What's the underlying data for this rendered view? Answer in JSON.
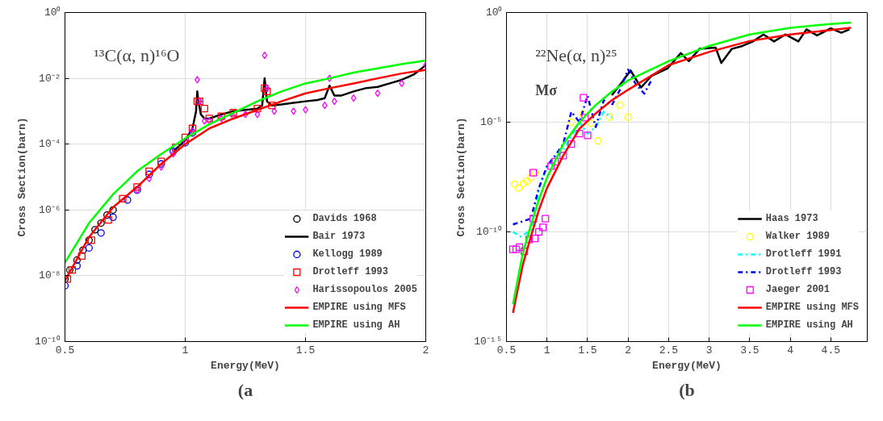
{
  "chart_data": [
    {
      "type": "scatter",
      "title": "¹³C(α, n)¹⁶O",
      "xlabel": "Energy(MeV)",
      "ylabel": "Cross Section(barn)",
      "annotations": [
        "(a"
      ],
      "log": "y",
      "grid": true,
      "legend": "bottom right",
      "xlim": [
        0.5,
        2
      ],
      "xticks": [
        0.5,
        1,
        1.5,
        2
      ],
      "ylim": [
        1e-10,
        1
      ],
      "yticks": [
        {
          "value": 1e-10,
          "label": "10⁻¹⁰"
        },
        {
          "value": 1e-08,
          "label": "10⁻⁸"
        },
        {
          "value": 1e-06,
          "label": "10⁻⁶"
        },
        {
          "value": 0.0001,
          "label": "10⁻⁴"
        },
        {
          "value": 0.01,
          "label": "10⁻²"
        },
        {
          "value": 1,
          "label": "10⁰"
        }
      ],
      "series": [
        {
          "name": "Davids 1968",
          "type": "scatter",
          "marker": "circle",
          "color": "#000000",
          "x": [
            0.5,
            0.52,
            0.55,
            0.575,
            0.6,
            0.625,
            0.65,
            0.675,
            0.7
          ],
          "values": [
            8e-09,
            1.5e-08,
            3e-08,
            6e-08,
            1.2e-07,
            2.5e-07,
            4e-07,
            7e-07,
            1e-06
          ]
        },
        {
          "name": "Bair 1973",
          "type": "line",
          "line_style": "solid",
          "color": "#000000",
          "x": [
            0.95,
            1.0,
            1.03,
            1.045,
            1.05,
            1.055,
            1.065,
            1.08,
            1.1,
            1.15,
            1.2,
            1.25,
            1.3,
            1.32,
            1.33,
            1.34,
            1.36,
            1.4,
            1.45,
            1.5,
            1.55,
            1.58,
            1.6,
            1.62,
            1.65,
            1.7,
            1.75,
            1.8,
            1.85,
            1.9,
            1.95,
            2.0
          ],
          "values": [
            6e-05,
            0.00013,
            0.0003,
            0.001,
            0.004,
            0.002,
            0.0008,
            0.0006,
            0.0006,
            0.0008,
            0.001,
            0.0011,
            0.0012,
            0.0015,
            0.01,
            0.002,
            0.0015,
            0.0016,
            0.0018,
            0.002,
            0.0022,
            0.0025,
            0.006,
            0.003,
            0.003,
            0.004,
            0.005,
            0.0055,
            0.007,
            0.009,
            0.013,
            0.025
          ]
        },
        {
          "name": "Kellogg 1989",
          "type": "scatter",
          "marker": "circle",
          "color": "#0000ff",
          "x": [
            0.5,
            0.55,
            0.6,
            0.65,
            0.7,
            0.76,
            0.8,
            0.85,
            0.9,
            0.95,
            1.0,
            1.03
          ],
          "values": [
            5e-09,
            2e-08,
            7e-08,
            2e-07,
            6e-07,
            2e-06,
            4e-06,
            1.2e-05,
            2.5e-05,
            6e-05,
            0.00011,
            0.00022
          ]
        },
        {
          "name": "Drotleff 1993",
          "type": "scatter",
          "marker": "square",
          "color": "#ff0000",
          "x": [
            0.51,
            0.53,
            0.57,
            0.61,
            0.68,
            0.74,
            0.8,
            0.85,
            0.9,
            0.96,
            1.0,
            1.03,
            1.05,
            1.06,
            1.08,
            1.1,
            1.15,
            1.2,
            1.3,
            1.33,
            1.34,
            1.36
          ],
          "values": [
            8e-09,
            1.5e-08,
            4e-08,
            1.2e-07,
            5e-07,
            2.2e-06,
            5e-06,
            1.5e-05,
            3e-05,
            8e-05,
            0.00016,
            0.0003,
            0.002,
            0.002,
            0.0012,
            0.0006,
            0.0007,
            0.0009,
            0.0012,
            0.005,
            0.004,
            0.0015
          ]
        },
        {
          "name": "Harissopoulos 2005",
          "type": "scatter",
          "marker": "diamond",
          "color": "#ff00ff",
          "x": [
            0.8,
            0.85,
            0.9,
            0.95,
            1.0,
            1.03,
            1.05,
            1.06,
            1.08,
            1.1,
            1.15,
            1.2,
            1.25,
            1.3,
            1.33,
            1.34,
            1.37,
            1.45,
            1.5,
            1.58,
            1.6,
            1.62,
            1.7,
            1.8,
            1.9,
            2.0
          ],
          "values": [
            4e-06,
            9e-06,
            2e-05,
            5e-05,
            0.00012,
            0.00025,
            0.009,
            0.002,
            0.0005,
            0.0005,
            0.0006,
            0.0007,
            0.0008,
            0.0008,
            0.05,
            0.005,
            0.001,
            0.001,
            0.0011,
            0.0015,
            0.01,
            0.002,
            0.0025,
            0.0035,
            0.007,
            0.025
          ]
        },
        {
          "name": "EMPIRE using MFS",
          "type": "line",
          "line_style": "solid",
          "color": "#ff0000",
          "x": [
            0.5,
            0.6,
            0.7,
            0.8,
            0.9,
            1.0,
            1.1,
            1.2,
            1.3,
            1.4,
            1.5,
            1.6,
            1.7,
            1.8,
            1.9,
            2.0
          ],
          "values": [
            7e-09,
            1.5e-07,
            1.2e-06,
            5e-06,
            2.5e-05,
            0.0001,
            0.0003,
            0.0006,
            0.0011,
            0.002,
            0.0035,
            0.005,
            0.007,
            0.01,
            0.014,
            0.018
          ]
        },
        {
          "name": "EMPIRE using AH",
          "type": "line",
          "line_style": "solid",
          "color": "#00ff00",
          "x": [
            0.5,
            0.6,
            0.7,
            0.8,
            0.9,
            1.0,
            1.1,
            1.2,
            1.3,
            1.4,
            1.5,
            1.6,
            1.7,
            1.8,
            1.9,
            2.0
          ],
          "values": [
            2.5e-08,
            4e-07,
            3e-06,
            1.5e-05,
            5e-05,
            0.00015,
            0.0004,
            0.0009,
            0.002,
            0.004,
            0.007,
            0.01,
            0.015,
            0.02,
            0.027,
            0.035
          ]
        }
      ]
    },
    {
      "type": "scatter",
      "title": "²²Ne(α, n)²⁵",
      "subtitle": "Mσ",
      "xlabel": "Energy(MeV)",
      "ylabel": "Cross Section(barn)",
      "annotations": [
        "(b"
      ],
      "log": "y",
      "grid": true,
      "legend": "bottom right",
      "xlim": [
        0.5,
        4.95
      ],
      "xticks": [
        0.5,
        1,
        1.5,
        2,
        2.5,
        3,
        3.5,
        4,
        4.5
      ],
      "ylim": [
        1e-15,
        1
      ],
      "yticks": [
        {
          "value": 1e-15,
          "label": "10⁻¹⁵"
        },
        {
          "value": 1e-10,
          "label": "10⁻¹⁰"
        },
        {
          "value": 1e-05,
          "label": "10⁻⁵"
        },
        {
          "value": 1,
          "label": "10⁰"
        }
      ],
      "series": [
        {
          "name": "Haas 1973",
          "type": "line",
          "line_style": "solid",
          "color": "#000000",
          "x": [
            1.8,
            1.93,
            2.03,
            2.16,
            2.29,
            2.49,
            2.65,
            2.75,
            2.88,
            3.08,
            3.15,
            3.28,
            3.41,
            3.54,
            3.67,
            3.8,
            3.94,
            4.1,
            4.2,
            4.33,
            4.5,
            4.63,
            4.73
          ],
          "values": [
            0.00017,
            0.0007,
            0.0023,
            0.00038,
            0.0013,
            0.0029,
            0.014,
            0.006,
            0.022,
            0.025,
            0.005,
            0.022,
            0.03,
            0.048,
            0.1,
            0.048,
            0.1,
            0.048,
            0.17,
            0.09,
            0.19,
            0.12,
            0.17
          ]
        },
        {
          "name": "Walker 1989",
          "type": "scatter",
          "marker": "circle",
          "color": "#ffff00",
          "x": [
            0.6,
            0.65,
            0.71,
            0.75,
            0.8,
            0.85,
            1.3,
            1.44,
            1.54,
            1.63,
            1.77,
            1.9,
            2.0
          ],
          "values": [
            1.5e-08,
            1e-08,
            1.6e-08,
            2e-08,
            3e-08,
            5e-08,
            1e-05,
            2.3e-05,
            9e-06,
            1.4e-06,
            1.7e-05,
            5.9e-05,
            1.7e-05
          ]
        },
        {
          "name": "Drotleff 1991",
          "type": "line",
          "line_style": "dashdot",
          "color": "#00ffff",
          "x": [
            0.58,
            0.68,
            0.81,
            0.9,
            1.0,
            1.2,
            1.4,
            1.5,
            1.6,
            1.7,
            1.8
          ],
          "values": [
            1e-10,
            6e-11,
            1.3e-10,
            1e-08,
            1e-07,
            5e-07,
            1e-05,
            3e-06,
            6e-06,
            3e-05,
            1.6e-05
          ]
        },
        {
          "name": "Drotleff 1993",
          "type": "line",
          "line_style": "dashdot",
          "color": "#0000ff",
          "x": [
            0.58,
            0.7,
            0.8,
            0.9,
            1.0,
            1.1,
            1.2,
            1.3,
            1.4,
            1.5,
            1.6,
            1.7,
            1.8,
            1.9,
            2.0,
            2.1,
            2.2,
            2.3
          ],
          "values": [
            2.2e-10,
            3e-10,
            4e-10,
            1e-08,
            1e-07,
            3e-07,
            1e-06,
            3e-05,
            1e-05,
            0.00016,
            6e-06,
            0.0001,
            6e-05,
            0.0003,
            0.0025,
            0.0005,
            0.0002,
            0.001
          ]
        },
        {
          "name": "Jaeger 2001",
          "type": "scatter",
          "marker": "square",
          "color": "#ff00ff",
          "x": [
            0.58,
            0.62,
            0.66,
            0.72,
            0.78,
            0.83,
            0.83,
            0.85,
            0.9,
            0.95,
            0.98,
            1.05,
            1.1,
            1.2,
            1.3,
            1.4,
            1.45,
            1.47,
            1.5
          ],
          "values": [
            1.6e-11,
            1.6e-11,
            2e-11,
            1.3e-11,
            4.5e-11,
            5e-08,
            4e-10,
            5e-11,
            1e-10,
            1.6e-10,
            4e-10,
            1e-07,
            1.6e-07,
            3e-07,
            1e-06,
            3e-06,
            0.00013,
            1.6e-05,
            2.5e-06
          ]
        },
        {
          "name": "EMPIRE using MFS",
          "type": "line",
          "line_style": "solid",
          "color": "#ff0000",
          "x": [
            0.58,
            0.7,
            0.8,
            0.9,
            1.0,
            1.2,
            1.4,
            1.6,
            1.8,
            2.0,
            2.5,
            3.0,
            3.5,
            4.0,
            4.5,
            4.75
          ],
          "values": [
            2e-14,
            3e-12,
            6e-11,
            1e-09,
            1e-08,
            3e-07,
            5e-06,
            2.5e-05,
            0.0001,
            0.0003,
            0.004,
            0.016,
            0.05,
            0.1,
            0.16,
            0.2
          ]
        },
        {
          "name": "EMPIRE using AH",
          "type": "line",
          "line_style": "solid",
          "color": "#00ff00",
          "x": [
            0.58,
            0.7,
            0.8,
            0.9,
            1.0,
            1.2,
            1.4,
            1.6,
            1.8,
            2.0,
            2.5,
            3.0,
            3.5,
            4.0,
            4.5,
            4.75
          ],
          "values": [
            5e-14,
            1e-11,
            2e-10,
            3e-09,
            3e-08,
            1e-06,
            1e-05,
            6e-05,
            0.00025,
            0.0008,
            0.006,
            0.03,
            0.1,
            0.2,
            0.3,
            0.35
          ]
        }
      ]
    }
  ]
}
